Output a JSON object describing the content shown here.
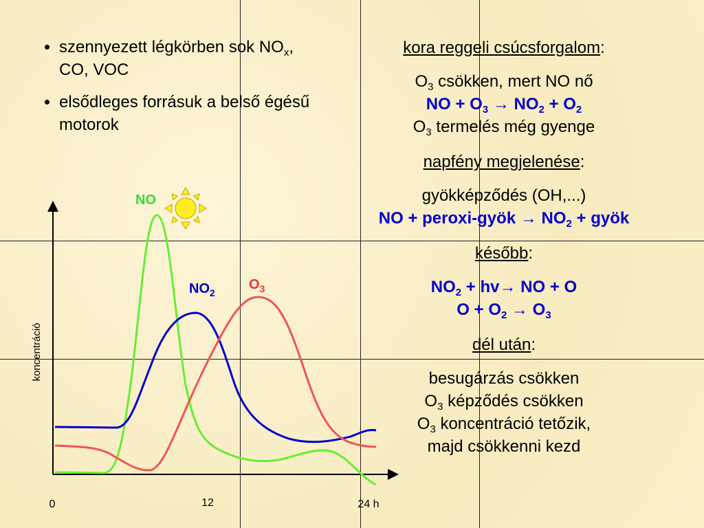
{
  "bullets": [
    [
      "szennyezett légkörben sok NO",
      {
        "sub": "x"
      },
      ", CO, VOC"
    ],
    [
      "elsődleges forrásuk a belső égésű motorok"
    ]
  ],
  "sections": [
    {
      "heading": "kora reggeli csúcsforgalom",
      "suffix": ":",
      "lines": [
        {
          "parts": [
            "O",
            {
              "sub": "3"
            },
            " csökken, mert NO nő"
          ]
        },
        {
          "bold": true,
          "parts": [
            "NO + O",
            {
              "sub": "3"
            },
            " → NO",
            {
              "sub": "2"
            },
            " + O",
            {
              "sub": "2"
            }
          ]
        },
        {
          "parts": [
            "O",
            {
              "sub": "3"
            },
            " termelés még gyenge"
          ]
        }
      ]
    },
    {
      "heading": "napfény megjelenése",
      "suffix": ":",
      "lines": [
        {
          "parts": [
            "gyökképződés (OH,...)"
          ]
        },
        {
          "bold": true,
          "parts": [
            "NO + peroxi-gyök → NO",
            {
              "sub": "2"
            },
            " + gyök"
          ]
        }
      ]
    },
    {
      "heading": "később",
      "suffix": ":",
      "lines": [
        {
          "bold": true,
          "parts": [
            "NO",
            {
              "sub": "2"
            },
            " + hv→ NO + O"
          ]
        },
        {
          "bold": true,
          "parts": [
            "O + O",
            {
              "sub": "2"
            },
            " →  O",
            {
              "sub": "3"
            }
          ]
        }
      ]
    },
    {
      "heading": "dél után",
      "suffix": ":",
      "lines": [
        {
          "parts": [
            "besugárzás csökken"
          ]
        },
        {
          "parts": [
            "O",
            {
              "sub": "3"
            },
            " képződés csökken"
          ]
        },
        {
          "parts": [
            "O",
            {
              "sub": "3"
            },
            " koncentráció tetőzik,"
          ]
        },
        {
          "parts": [
            "majd csökkenni kezd"
          ]
        }
      ]
    }
  ],
  "chart": {
    "y_label": "koncentráció",
    "x_labels": [
      "0",
      "12",
      "24 h"
    ],
    "curve_labels": {
      "no": [
        "NO"
      ],
      "no2": [
        "NO",
        {
          "sub": "2"
        }
      ],
      "o3": [
        "O",
        {
          "sub": "3"
        }
      ]
    }
  }
}
